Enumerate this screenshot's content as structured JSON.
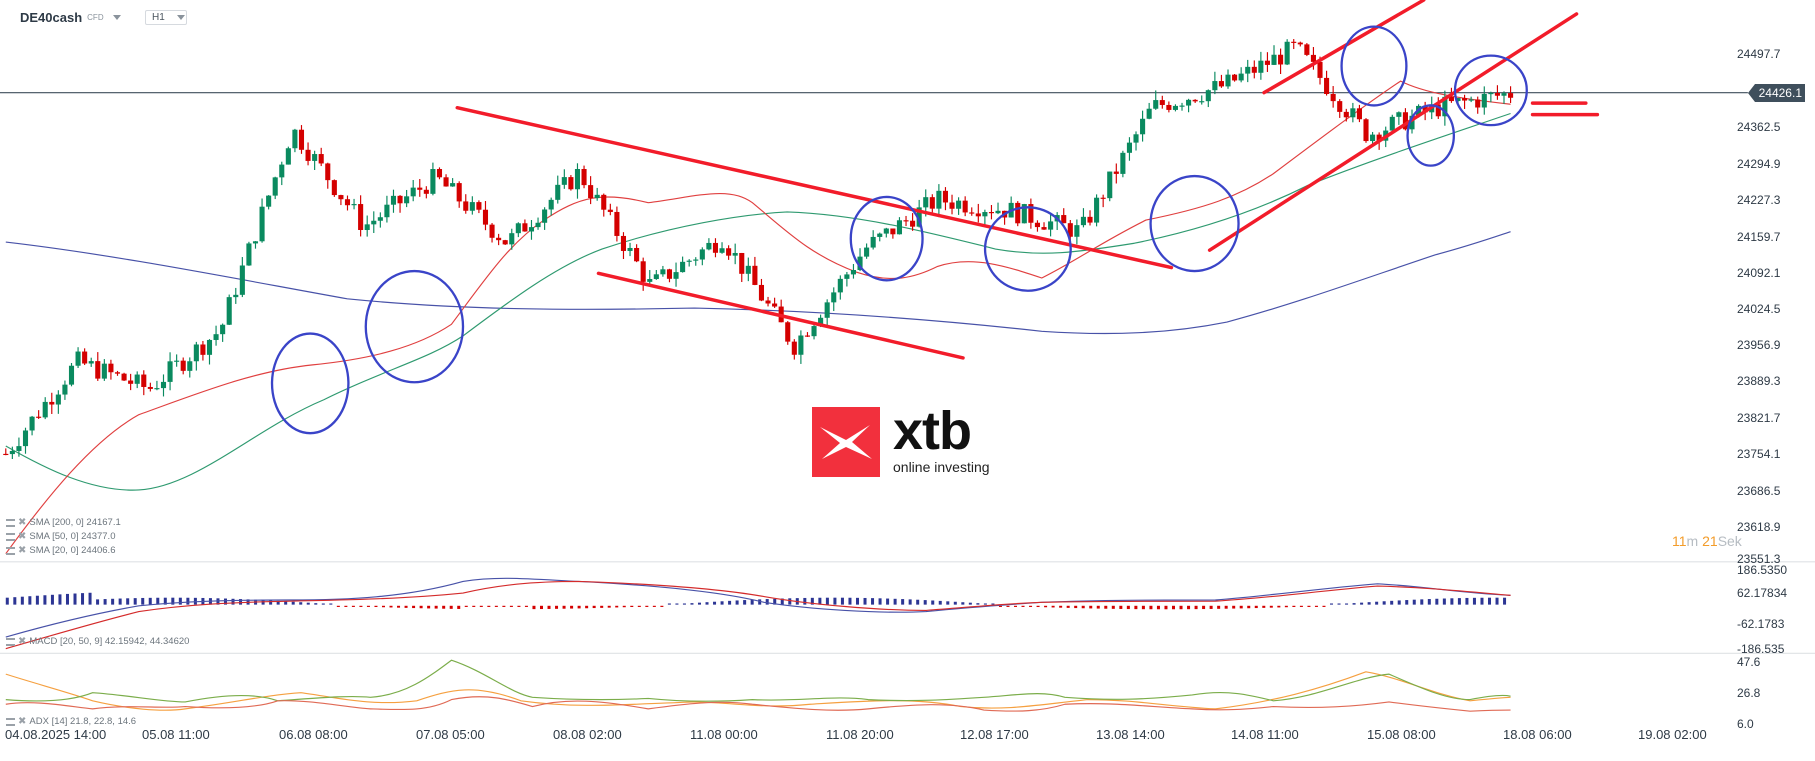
{
  "header": {
    "symbol": "DE40cash",
    "symbol_type": "CFD",
    "timeframe": "H1"
  },
  "price_axis": {
    "labels": [
      "24497.7",
      "24362.5",
      "24294.9",
      "24227.3",
      "24159.7",
      "24092.1",
      "24024.5",
      "23956.9",
      "23889.3",
      "23821.7",
      "23754.1",
      "23686.5",
      "23618.9",
      "23551.3"
    ],
    "current_price": "24426.1"
  },
  "macd_axis": {
    "labels": [
      "186.5350",
      "62.17834",
      "-62.1783",
      "-186.535"
    ]
  },
  "adx_axis": {
    "labels": [
      "47.6",
      "26.8",
      "6.0"
    ]
  },
  "time_axis": {
    "labels": [
      "04.08.2025  14:00",
      "05.08  11:00",
      "06.08  08:00",
      "07.08  05:00",
      "08.08  02:00",
      "11.08  00:00",
      "11.08  20:00",
      "12.08  17:00",
      "13.08  14:00",
      "14.08  11:00",
      "15.08  08:00",
      "18.08  06:00",
      "19.08  02:00"
    ]
  },
  "legends": {
    "sma200": "SMA [200,  0] 24167.1",
    "sma50": "SMA [50,  0] 24377.0",
    "sma20": "SMA [20,  0] 24406.6",
    "macd": "MACD  [20,  50,  9] 42.15942,   44.34620",
    "adx": "ADX  [14]  21.8,   22.8,   14.6"
  },
  "timer": {
    "minutes": "11",
    "m_label": "m",
    "seconds": "21",
    "s_label": "Sek"
  },
  "logo": {
    "brand": "xtb",
    "tagline": "online investing"
  },
  "colors": {
    "bull": "#0a8a5f",
    "bear": "#d40000",
    "sma20": "#e04040",
    "sma50": "#2f9a70",
    "sma200": "#4852a8",
    "annotation_red": "#f21c2a",
    "annotation_blue": "#3a44c8",
    "price_line": "#3f4f5c"
  },
  "chart_data": {
    "type": "candlestick",
    "title": "DE40cash CFD H1",
    "instrument": "DE40cash",
    "timeframe": "H1",
    "x_ticks": [
      "04.08.2025 14:00",
      "05.08 11:00",
      "06.08 08:00",
      "07.08 05:00",
      "08.08 02:00",
      "11.08 00:00",
      "11.08 20:00",
      "12.08 17:00",
      "13.08 14:00",
      "14.08 11:00",
      "15.08 08:00",
      "18.08 06:00",
      "19.08 02:00"
    ],
    "y_ticks": [
      24497.7,
      24362.5,
      24294.9,
      24227.3,
      24159.7,
      24092.1,
      24024.5,
      23956.9,
      23889.3,
      23821.7,
      23754.1,
      23686.5,
      23618.9,
      23551.3
    ],
    "ylim": [
      23551.3,
      24560
    ],
    "current_price": 24426.1,
    "approx_close_path": [
      {
        "t": "04.08 14:00",
        "close": 23760
      },
      {
        "t": "05.08 11:00",
        "close": 23930
      },
      {
        "t": "06.08 08:00",
        "close": 23880
      },
      {
        "t": "06.08 20:00",
        "close": 23990
      },
      {
        "t": "07.08 05:00",
        "close": 24360
      },
      {
        "t": "07.08 12:00",
        "close": 24180
      },
      {
        "t": "08.08 02:00",
        "close": 24270
      },
      {
        "t": "08.08 16:00",
        "close": 24150
      },
      {
        "t": "11.08 00:00",
        "close": 24280
      },
      {
        "t": "11.08 06:00",
        "close": 24070
      },
      {
        "t": "11.08 20:00",
        "close": 24160
      },
      {
        "t": "12.08 06:00",
        "close": 23960
      },
      {
        "t": "12.08 17:00",
        "close": 24140
      },
      {
        "t": "13.08 06:00",
        "close": 24230
      },
      {
        "t": "13.08 14:00",
        "close": 24210
      },
      {
        "t": "14.08 00:00",
        "close": 24170
      },
      {
        "t": "14.08 11:00",
        "close": 24400
      },
      {
        "t": "15.08 02:00",
        "close": 24440
      },
      {
        "t": "15.08 06:00",
        "close": 24510
      },
      {
        "t": "15.08 12:00",
        "close": 24350
      },
      {
        "t": "15.08 20:00",
        "close": 24400
      },
      {
        "t": "18.08 06:00",
        "close": 24426
      }
    ],
    "indicators": [
      {
        "name": "SMA 200",
        "value": 24167.1,
        "color": "#4852a8"
      },
      {
        "name": "SMA 50",
        "value": 24377.0,
        "color": "#2f9a70"
      },
      {
        "name": "SMA 20",
        "value": 24406.6,
        "color": "#e04040"
      },
      {
        "name": "MACD [20,50,9]",
        "values": [
          42.15942,
          44.3462
        ],
        "ylim": [
          -186.535,
          186.535
        ],
        "y_ticks": [
          186.535,
          62.17834,
          -62.1783,
          -186.535
        ]
      },
      {
        "name": "ADX [14]",
        "values": [
          21.8,
          22.8,
          14.6
        ],
        "ylim": [
          6.0,
          47.6
        ],
        "y_ticks": [
          47.6,
          26.8,
          6.0
        ]
      }
    ],
    "annotations": [
      "descending channel (red) from 07.08 high to 12.08",
      "ascending channel (red) from 14.08",
      "two red horizontal lines near current price at right",
      "blue circles marking reaction points"
    ],
    "grid": false
  }
}
